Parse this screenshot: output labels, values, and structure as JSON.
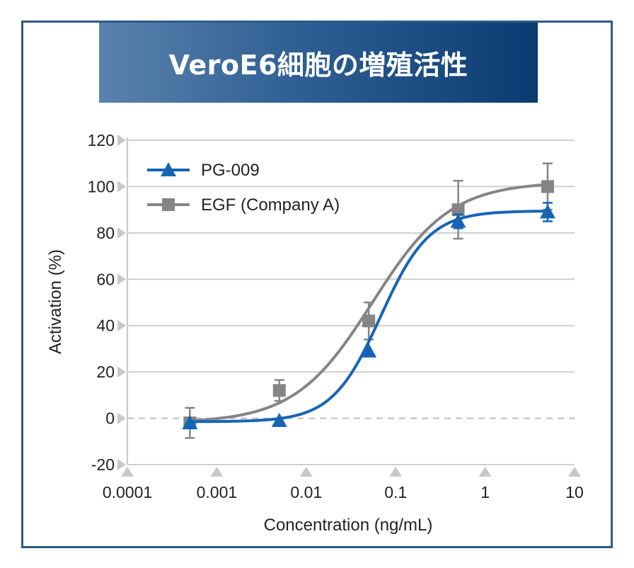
{
  "title": "VeroE6細胞の増殖活性",
  "colors": {
    "frame": "#2d5a86",
    "banner_start": "#5b82ad",
    "banner_end": "#0a3b72",
    "series_pg009": "#1565b5",
    "series_egf": "#858585",
    "grid": "#c8c8c8",
    "tick_marker": "#c8c8c8"
  },
  "chart_data": {
    "type": "line",
    "xlabel": "Concentration (ng/mL)",
    "ylabel": "Activation (%)",
    "x_scale": "log",
    "xlim": [
      0.0001,
      10
    ],
    "ylim": [
      -20,
      120
    ],
    "x_ticks": [
      "0.0001",
      "0.001",
      "0.01",
      "0.1",
      "1",
      "10"
    ],
    "y_ticks": [
      "-20",
      "0",
      "20",
      "40",
      "60",
      "80",
      "100",
      "120"
    ],
    "grid": true,
    "zero_line": "dashed",
    "legend_position": "top-left",
    "series": [
      {
        "name": "PG-009",
        "marker": "triangle",
        "color": "#1565b5",
        "x": [
          0.0005,
          0.005,
          0.05,
          0.5,
          5
        ],
        "y": [
          -2,
          -1,
          29,
          85,
          89
        ],
        "error": [
          null,
          null,
          null,
          3,
          4
        ],
        "fit": {
          "bottom": -1.5,
          "top": 89.5,
          "ec50": 0.068,
          "hill": 1.6
        }
      },
      {
        "name": "EGF (Company A)",
        "marker": "square",
        "color": "#858585",
        "x": [
          0.0005,
          0.005,
          0.05,
          0.5,
          5
        ],
        "y": [
          -2,
          12,
          42,
          90,
          100
        ],
        "error": [
          6.5,
          4.5,
          8,
          12.5,
          10
        ],
        "fit": {
          "bottom": -2,
          "top": 102,
          "ec50": 0.055,
          "hill": 1.0
        }
      }
    ]
  }
}
